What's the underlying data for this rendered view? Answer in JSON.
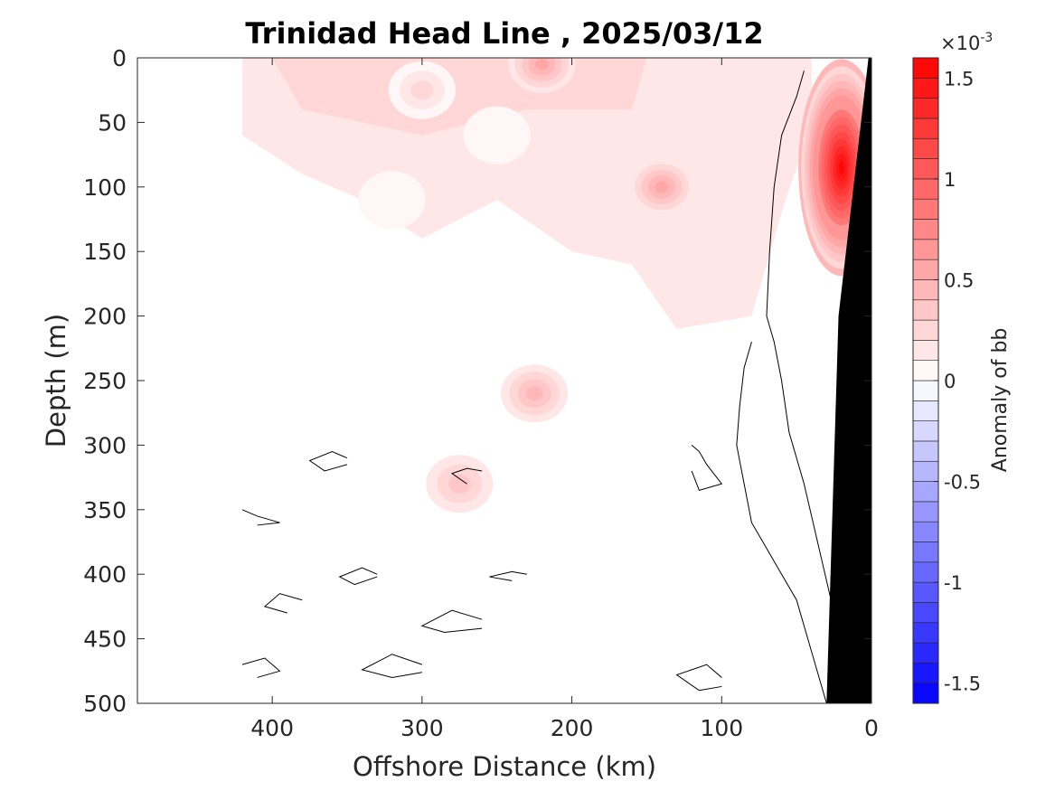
{
  "chart_data": {
    "type": "heatmap",
    "title": "Trinidad Head Line , 2025/03/12",
    "xlabel": "Offshore Distance (km)",
    "ylabel": "Depth (m)",
    "xlim": [
      490,
      0
    ],
    "ylim": [
      0,
      500
    ],
    "x_reversed": true,
    "y_reversed": true,
    "x_ticks": [
      400,
      300,
      200,
      100,
      0
    ],
    "y_ticks": [
      0,
      50,
      100,
      150,
      200,
      250,
      300,
      350,
      400,
      450,
      500
    ],
    "colorbar": {
      "label": "Anomaly of bb",
      "multiplier": "×10",
      "exponent": "-3",
      "range": [
        -1.6,
        1.6
      ],
      "ticks": [
        1.5,
        1,
        0.5,
        0,
        -0.5,
        -1,
        -1.5
      ],
      "tick_labels": [
        "1.5",
        "1",
        "0.5",
        "0",
        "-0.5",
        "-1",
        "-1.5"
      ],
      "levels": 32,
      "positive_color": "#ff0000",
      "negative_color": "#0000ff"
    },
    "data_extent_x": [
      0,
      420
    ],
    "anomalies": [
      {
        "x": 20,
        "y": 85,
        "value": 1.5
      },
      {
        "x": 140,
        "y": 100,
        "value": 0.5
      },
      {
        "x": 220,
        "y": 5,
        "value": 0.5
      },
      {
        "x": 225,
        "y": 260,
        "value": 0.4
      },
      {
        "x": 275,
        "y": 330,
        "value": 0.35
      },
      {
        "x": 300,
        "y": 25,
        "value": 0.25
      },
      {
        "x": 320,
        "y": 110,
        "value": 0.12
      },
      {
        "x": 250,
        "y": 60,
        "value": 0.15
      }
    ],
    "bathymetry_color": "#000000"
  }
}
